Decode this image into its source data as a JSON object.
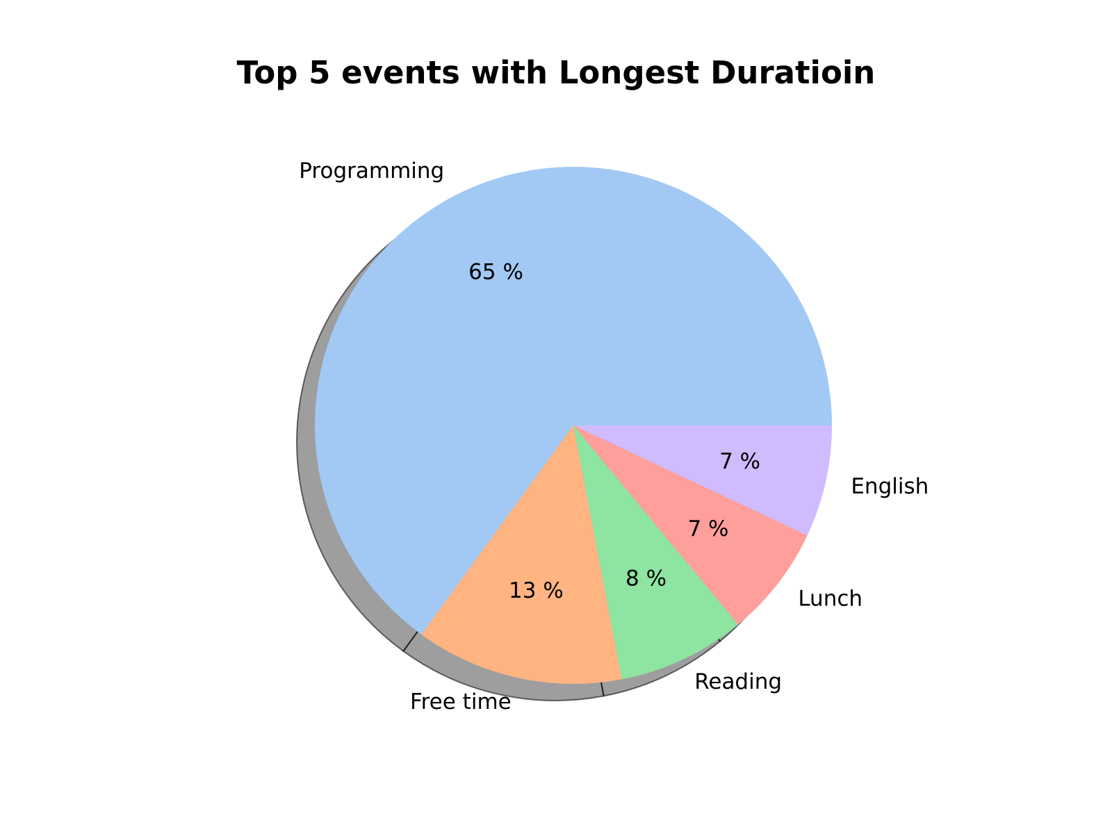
{
  "chart_data": {
    "type": "pie",
    "title": "Top 5 events with Longest Duratioin",
    "categories": [
      "Programming",
      "Free time",
      "Reading",
      "Lunch",
      "English"
    ],
    "values": [
      65,
      13,
      8,
      7,
      7
    ],
    "value_labels": [
      "65 %",
      "13 %",
      "8 %",
      "7 %",
      "7 %"
    ],
    "colors": [
      "#a1c9f4",
      "#ffb482",
      "#8de5a1",
      "#ff9f9b",
      "#d0bbff"
    ],
    "start_angle_deg": 0,
    "direction": "counterclockwise",
    "shadow": true,
    "legend": "none"
  }
}
